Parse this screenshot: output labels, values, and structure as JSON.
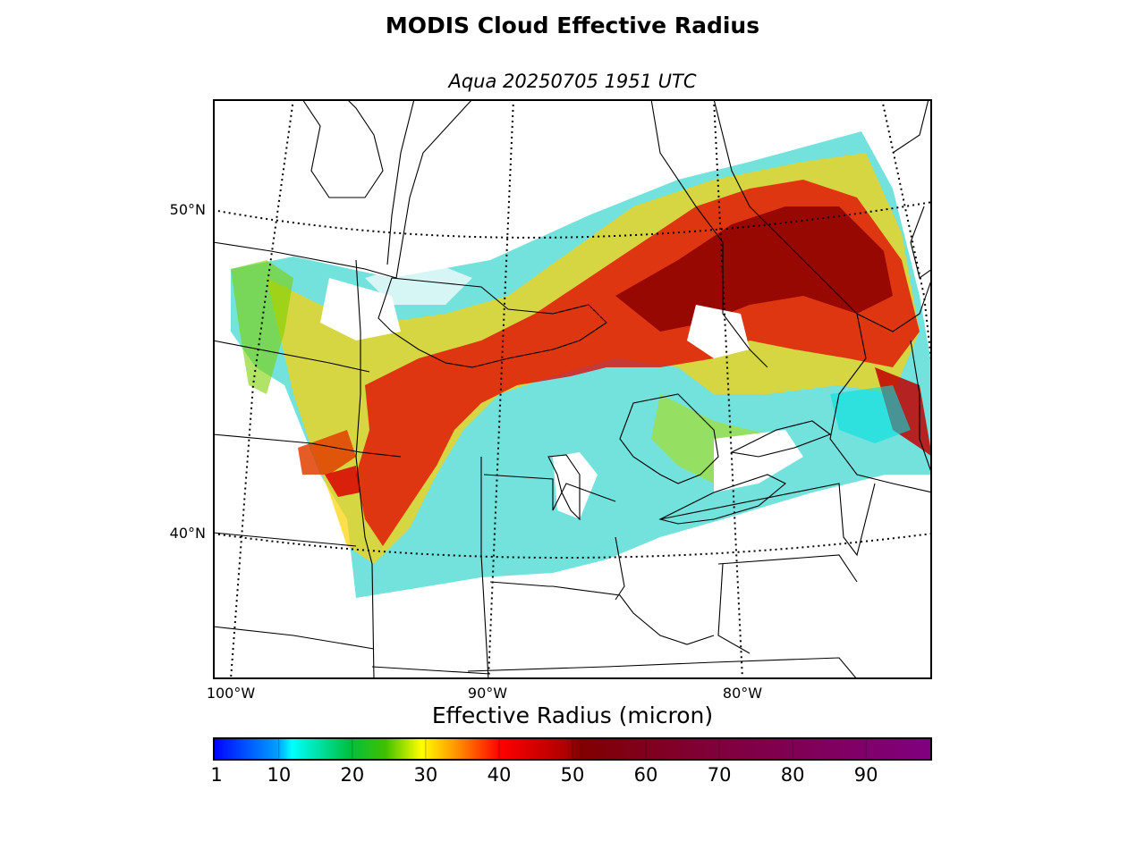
{
  "title": "MODIS Cloud Effective Radius",
  "subtitle": "Aqua 20250705 1951 UTC",
  "map": {
    "lat_labels": [
      "50°N",
      "40°N"
    ],
    "lon_labels": [
      "100°W",
      "90°W",
      "80°W"
    ],
    "colors": {
      "blue": "#0000ff",
      "cyan": "#00ffff",
      "green": "#00b400",
      "yellow": "#ffff00",
      "orange": "#ff8c00",
      "red": "#e00000",
      "dark_red": "#8b0000",
      "maroon": "#800040",
      "purple": "#800080"
    }
  },
  "colorbar": {
    "title": "Effective Radius (micron)",
    "tick_labels": [
      "1",
      "10",
      "20",
      "30",
      "40",
      "50",
      "60",
      "70",
      "80",
      "90"
    ],
    "range": [
      1,
      99
    ]
  }
}
